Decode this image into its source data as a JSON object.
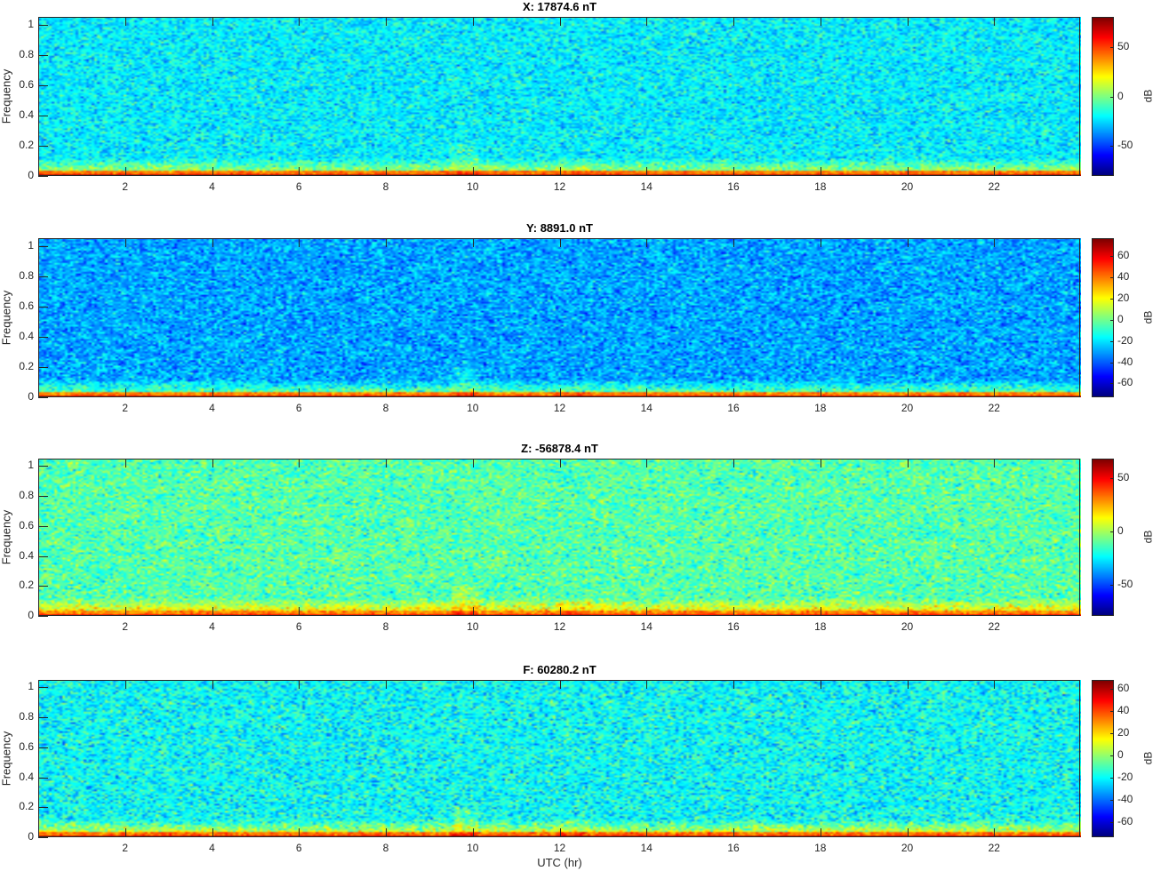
{
  "chart_data": [
    {
      "type": "heatmap",
      "title": "X: 17874.6 nT",
      "ylabel": "Frequency",
      "xlabel": "",
      "colorbar_label": "dB",
      "colormap": "jet",
      "xlim": [
        0,
        24
      ],
      "ylim": [
        0,
        1.05
      ],
      "clim": [
        -80,
        80
      ],
      "xticks": [
        2,
        4,
        6,
        8,
        10,
        12,
        14,
        16,
        18,
        20,
        22
      ],
      "xticklabels": [
        "2",
        "4",
        "6",
        "8",
        "10",
        "12",
        "14",
        "16",
        "18",
        "20",
        "22"
      ],
      "yticks": [
        0,
        0.2,
        0.4,
        0.6,
        0.8,
        1
      ],
      "yticklabels": [
        "0",
        "0.2",
        "0.4",
        "0.6",
        "0.8",
        "1"
      ],
      "cticks": [
        -50,
        0,
        50
      ],
      "cticklabels": [
        "-50",
        "0",
        "50"
      ],
      "background_db": -22,
      "lowfreq_db": 75
    },
    {
      "type": "heatmap",
      "title": "Y: 8891.0 nT",
      "ylabel": "Frequency",
      "xlabel": "",
      "colorbar_label": "dB",
      "colormap": "jet",
      "xlim": [
        0,
        24
      ],
      "ylim": [
        0,
        1.05
      ],
      "clim": [
        -73,
        77
      ],
      "xticks": [
        2,
        4,
        6,
        8,
        10,
        12,
        14,
        16,
        18,
        20,
        22
      ],
      "xticklabels": [
        "2",
        "4",
        "6",
        "8",
        "10",
        "12",
        "14",
        "16",
        "18",
        "20",
        "22"
      ],
      "yticks": [
        0,
        0.2,
        0.4,
        0.6,
        0.8,
        1
      ],
      "yticklabels": [
        "0",
        "0.2",
        "0.4",
        "0.6",
        "0.8",
        "1"
      ],
      "cticks": [
        -60,
        -40,
        -20,
        0,
        20,
        40,
        60
      ],
      "cticklabels": [
        "-60",
        "-40",
        "-20",
        "0",
        "20",
        "40",
        "60"
      ],
      "background_db": -30,
      "lowfreq_db": 70
    },
    {
      "type": "heatmap",
      "title": "Z: -56878.4 nT",
      "ylabel": "Frequency",
      "xlabel": "",
      "colorbar_label": "dB",
      "colormap": "jet",
      "xlim": [
        0,
        24
      ],
      "ylim": [
        0,
        1.05
      ],
      "clim": [
        -79,
        68
      ],
      "xticks": [
        2,
        4,
        6,
        8,
        10,
        12,
        14,
        16,
        18,
        20,
        22
      ],
      "xticklabels": [
        "2",
        "4",
        "6",
        "8",
        "10",
        "12",
        "14",
        "16",
        "18",
        "20",
        "22"
      ],
      "yticks": [
        0,
        0.2,
        0.4,
        0.6,
        0.8,
        1
      ],
      "yticklabels": [
        "0",
        "0.2",
        "0.4",
        "0.6",
        "0.8",
        "1"
      ],
      "cticks": [
        -50,
        0,
        50
      ],
      "cticklabels": [
        "-50",
        "0",
        "50"
      ],
      "background_db": -12,
      "lowfreq_db": 55
    },
    {
      "type": "heatmap",
      "title": "F: 60280.2 nT",
      "ylabel": "Frequency",
      "xlabel": "UTC (hr)",
      "colorbar_label": "dB",
      "colormap": "jet",
      "xlim": [
        0,
        24
      ],
      "ylim": [
        0,
        1.05
      ],
      "clim": [
        -74,
        68
      ],
      "xticks": [
        2,
        4,
        6,
        8,
        10,
        12,
        14,
        16,
        18,
        20,
        22
      ],
      "xticklabels": [
        "2",
        "4",
        "6",
        "8",
        "10",
        "12",
        "14",
        "16",
        "18",
        "20",
        "22"
      ],
      "yticks": [
        0,
        0.2,
        0.4,
        0.6,
        0.8,
        1
      ],
      "yticklabels": [
        "0",
        "0.2",
        "0.4",
        "0.6",
        "0.8",
        "1"
      ],
      "cticks": [
        -60,
        -40,
        -20,
        0,
        20,
        40,
        60
      ],
      "cticklabels": [
        "-60",
        "-40",
        "-20",
        "0",
        "20",
        "40",
        "60"
      ],
      "background_db": -20,
      "lowfreq_db": 62
    }
  ]
}
